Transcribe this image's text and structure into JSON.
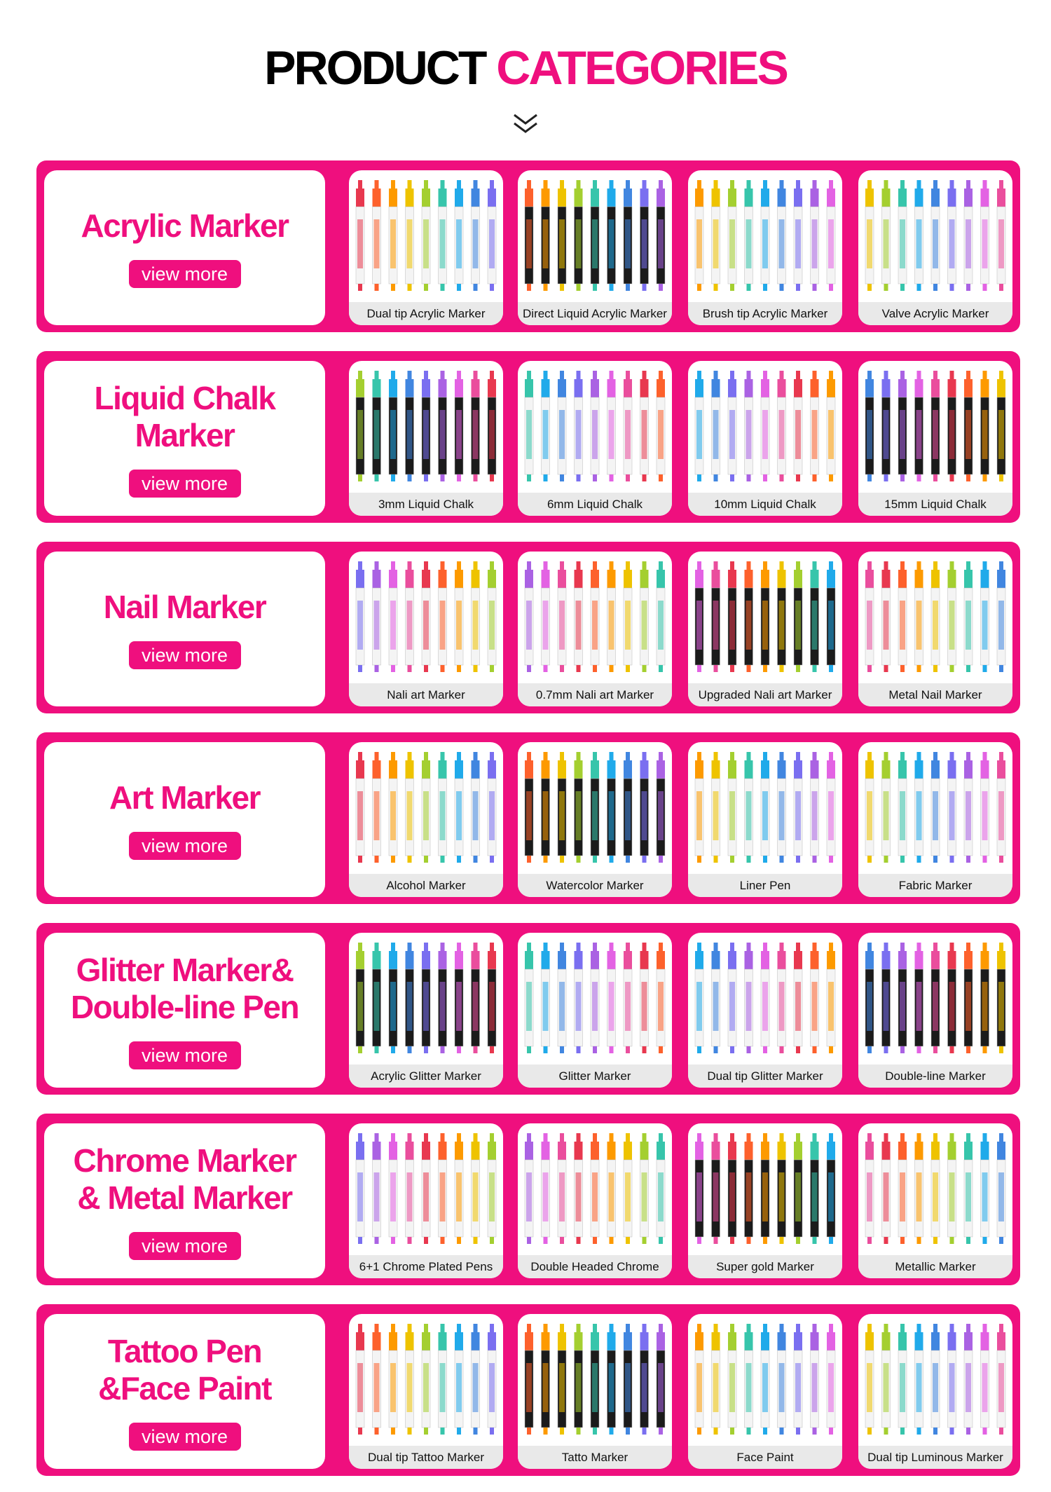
{
  "header": {
    "title_part1": "PRODUCT",
    "title_part2": "CATEGORIES"
  },
  "categories": [
    {
      "title_lines": [
        "Acrylic Marker"
      ],
      "button": "view more",
      "products": [
        "Dual tip Acrylic Marker",
        "Direct Liquid Acrylic Marker",
        "Brush tip Acrylic Marker",
        "Valve Acrylic Marker"
      ]
    },
    {
      "title_lines": [
        "Liquid Chalk",
        "Marker"
      ],
      "button": "view more",
      "products": [
        "3mm Liquid Chalk",
        "6mm Liquid Chalk",
        "10mm Liquid Chalk",
        "15mm Liquid Chalk"
      ]
    },
    {
      "title_lines": [
        "Nail Marker"
      ],
      "button": "view more",
      "products": [
        "Nali art Marker",
        "0.7mm Nali art Marker",
        "Upgraded Nali art Marker",
        "Metal Nail Marker"
      ]
    },
    {
      "title_lines": [
        "Art Marker"
      ],
      "button": "view more",
      "products": [
        "Alcohol Marker",
        "Watercolor Marker",
        "Liner Pen",
        "Fabric Marker"
      ]
    },
    {
      "title_lines": [
        "Glitter Marker&",
        "Double-line Pen"
      ],
      "button": "view more",
      "products": [
        "Acrylic Glitter Marker",
        "Glitter Marker",
        "Dual tip Glitter Marker",
        "Double-line Marker"
      ]
    },
    {
      "title_lines": [
        "Chrome Marker",
        "& Metal Marker"
      ],
      "button": "view more",
      "products": [
        "6+1 Chrome Plated Pens",
        "Double Headed Chrome",
        "Super gold Marker",
        "Metallic Marker"
      ]
    },
    {
      "title_lines": [
        "Tattoo Pen",
        "&Face Paint"
      ],
      "button": "view more",
      "products": [
        "Dual tip Tattoo Marker",
        "Tatto Marker",
        "Face Paint",
        "Dual tip Luminous Marker"
      ]
    }
  ]
}
